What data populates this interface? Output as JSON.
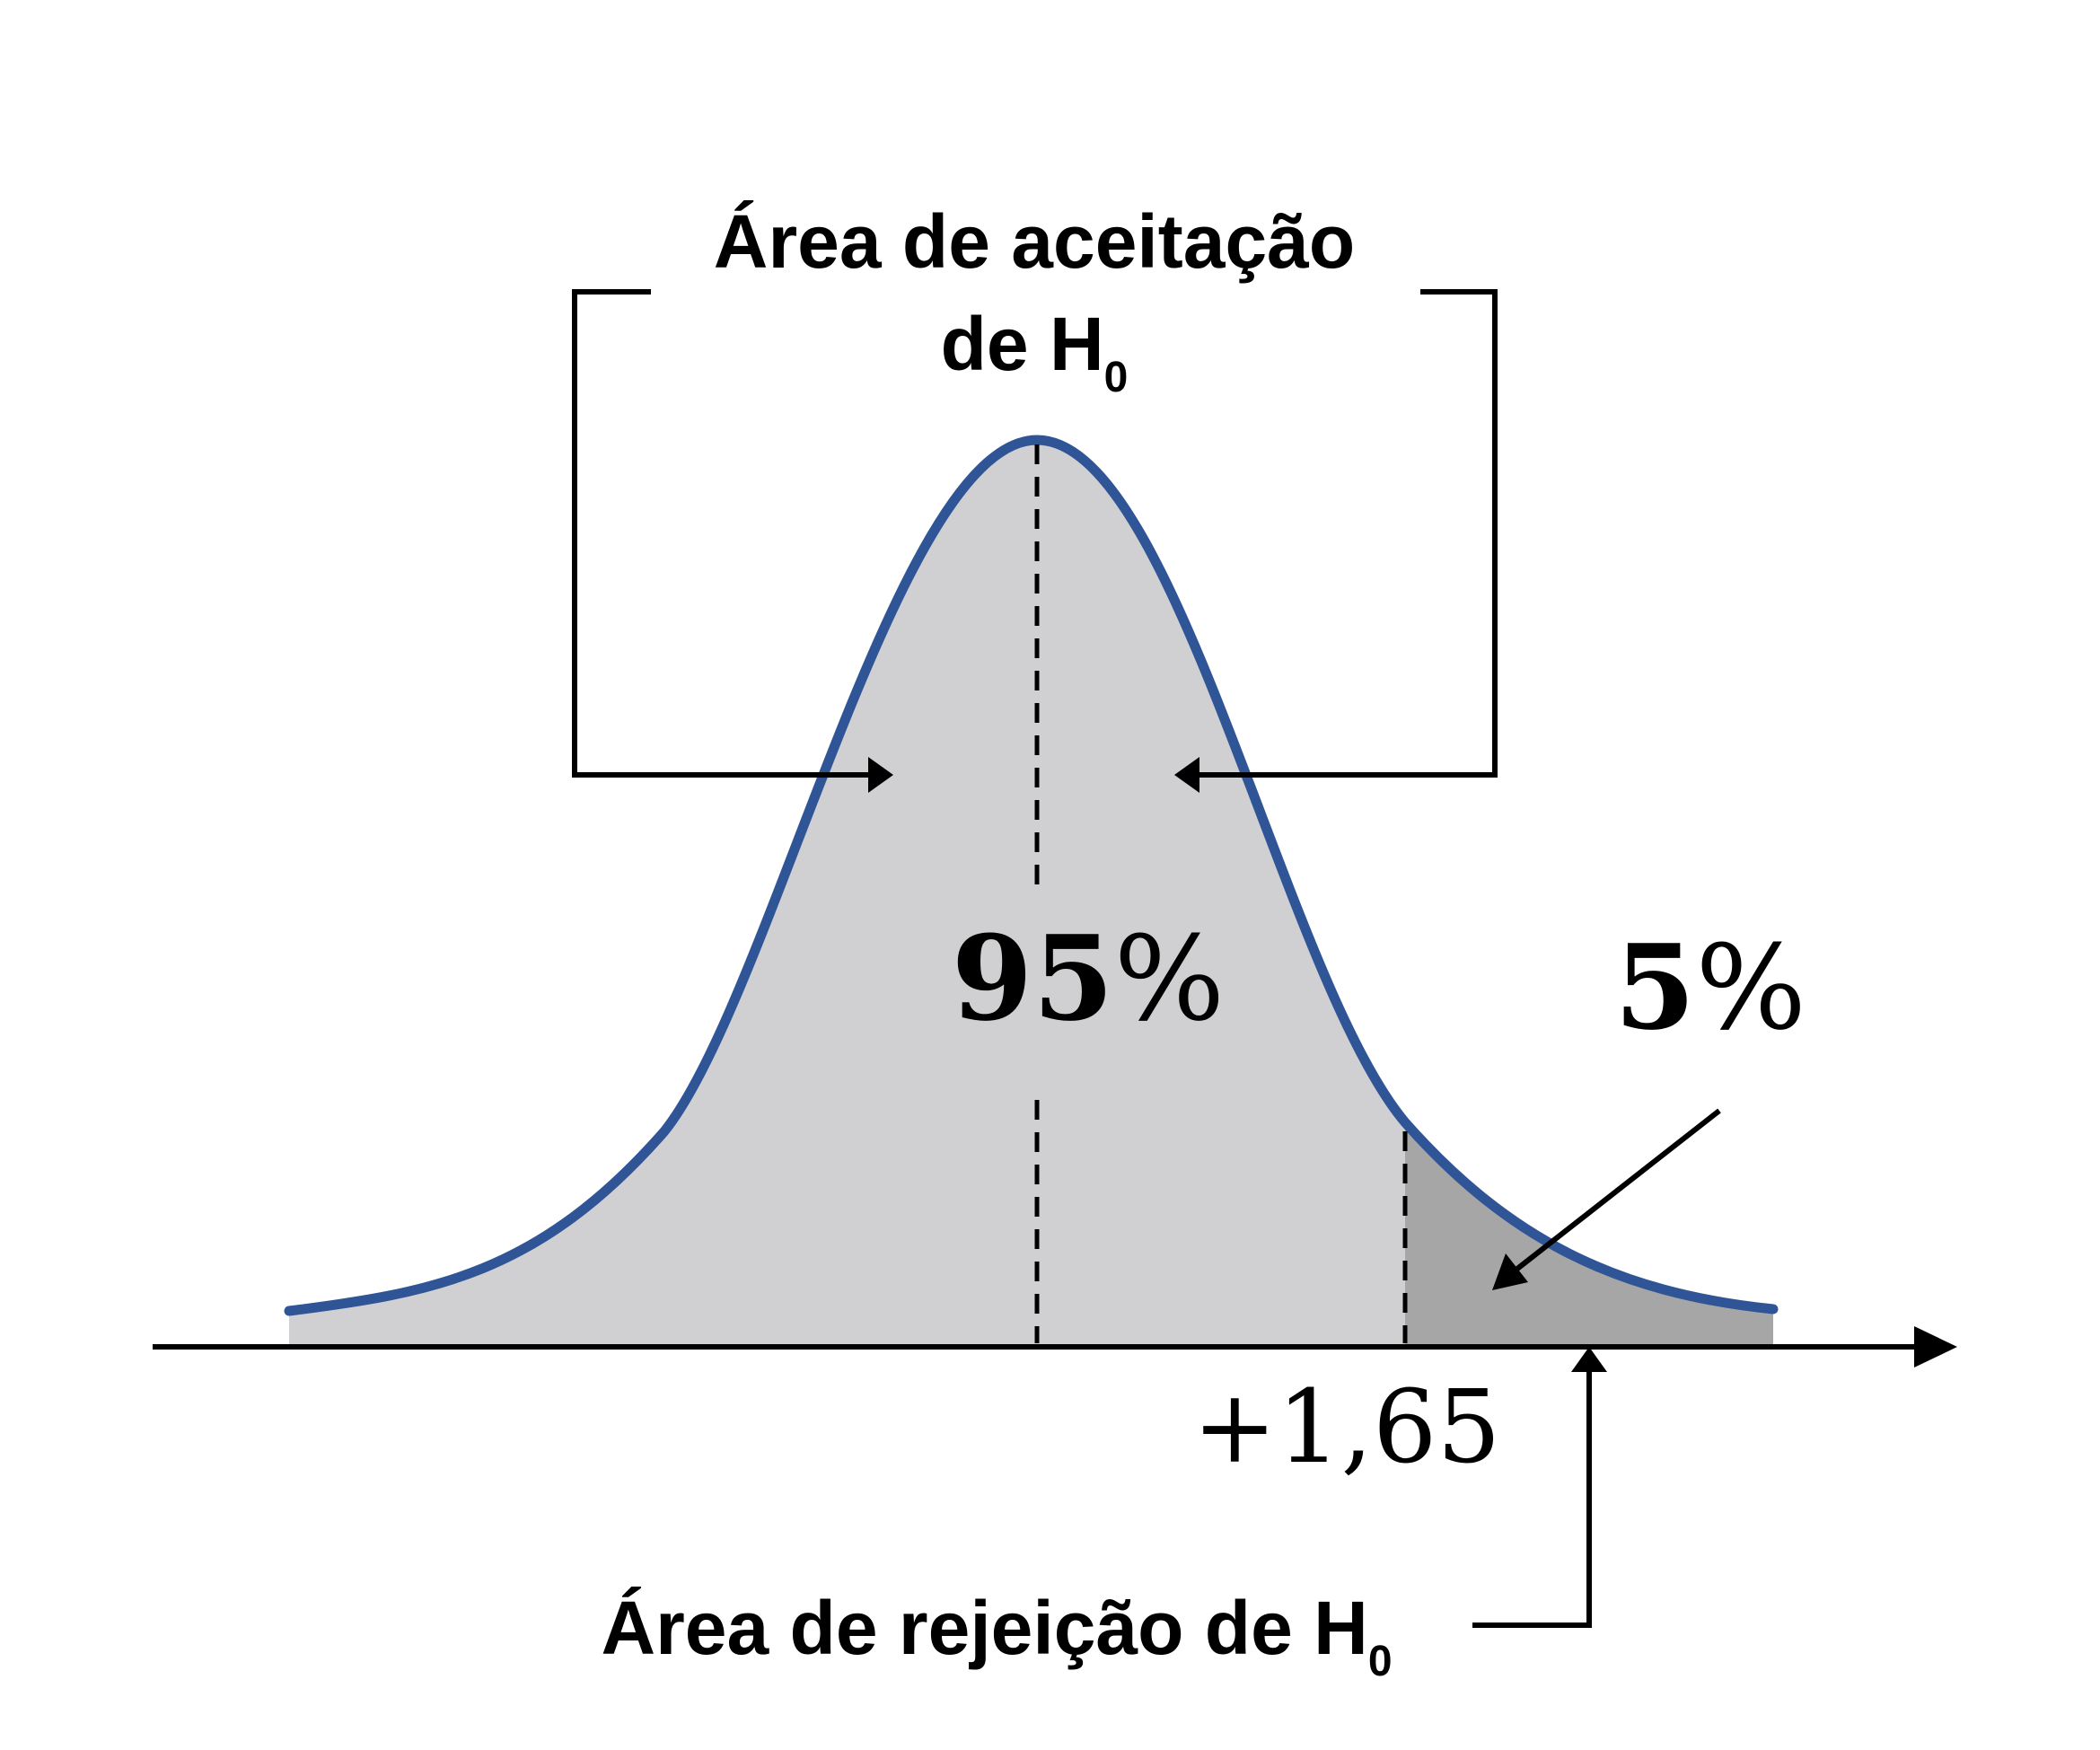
{
  "acceptance_label": {
    "line1": "Área de aceitação",
    "line2": "de H",
    "subscript": "0"
  },
  "acceptance_percent": {
    "number": "95",
    "symbol": "%"
  },
  "rejection_percent": {
    "number": "5",
    "symbol": "%"
  },
  "critical_value": "+1,65",
  "rejection_label": {
    "text": "Área de rejeição de H",
    "subscript": "0"
  },
  "colors": {
    "curve": "#2f5597",
    "acceptance_fill": "#d0cfd1",
    "rejection_fill": "#a6a6a6",
    "lines": "#000000"
  }
}
